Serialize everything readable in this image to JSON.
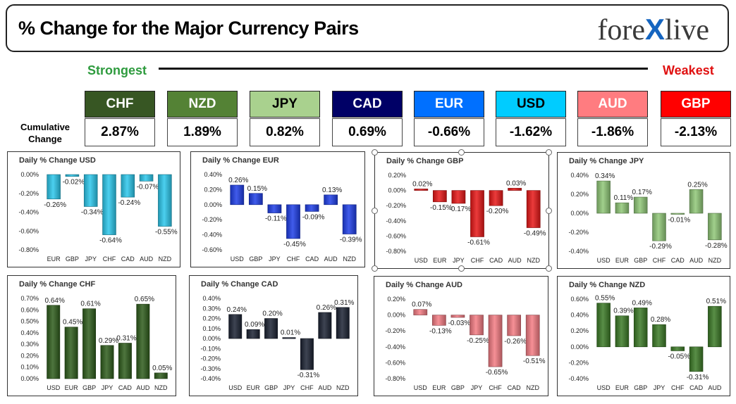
{
  "header": {
    "title": "% Change for the Major Currency Pairs",
    "logo_left": "fore",
    "logo_x": "X",
    "logo_right": "live"
  },
  "ranking": {
    "strongest_label": "Strongest",
    "weakest_label": "Weakest",
    "cumulative_label": "Cumulative Change"
  },
  "currencies": [
    {
      "name": "CHF",
      "value": "2.87%",
      "bg": "#375623",
      "fg": "#ffffff"
    },
    {
      "name": "NZD",
      "value": "1.89%",
      "bg": "#548235",
      "fg": "#ffffff"
    },
    {
      "name": "JPY",
      "value": "0.82%",
      "bg": "#a9d18e",
      "fg": "#000000"
    },
    {
      "name": "CAD",
      "value": "0.69%",
      "bg": "#000066",
      "fg": "#ffffff"
    },
    {
      "name": "EUR",
      "value": "-0.66%",
      "bg": "#0070ff",
      "fg": "#ffffff"
    },
    {
      "name": "USD",
      "value": "-1.62%",
      "bg": "#00ccff",
      "fg": "#000000"
    },
    {
      "name": "AUD",
      "value": "-1.86%",
      "bg": "#ff7c80",
      "fg": "#ffffff"
    },
    {
      "name": "GBP",
      "value": "-2.13%",
      "bg": "#ff0000",
      "fg": "#ffffff"
    }
  ],
  "chart_data": [
    {
      "type": "bar",
      "title": "Daily % Change USD",
      "categories": [
        "EUR",
        "GBP",
        "JPY",
        "CHF",
        "CAD",
        "AUD",
        "NZD"
      ],
      "values": [
        -0.26,
        -0.02,
        -0.34,
        -0.64,
        -0.24,
        -0.07,
        -0.55
      ],
      "labels": [
        "-0.26%",
        "-0.02%",
        "-0.34%",
        "-0.64%",
        "-0.24%",
        "-0.07%",
        "-0.55%"
      ],
      "ticks": [
        "0.00%",
        "-0.20%",
        "-0.40%",
        "-0.60%",
        "-0.80%"
      ],
      "ylim": [
        -0.8,
        0
      ],
      "color": "#2cc8ec"
    },
    {
      "type": "bar",
      "title": "Daily % Change EUR",
      "categories": [
        "USD",
        "GBP",
        "JPY",
        "CHF",
        "CAD",
        "AUD",
        "NZD"
      ],
      "values": [
        0.26,
        0.15,
        -0.11,
        -0.45,
        -0.09,
        0.13,
        -0.39
      ],
      "labels": [
        "0.26%",
        "0.15%",
        "-0.11%",
        "-0.45%",
        "-0.09%",
        "0.13%",
        "-0.39%"
      ],
      "ticks": [
        "0.40%",
        "0.20%",
        "0.00%",
        "-0.20%",
        "-0.40%",
        "-0.60%"
      ],
      "ylim": [
        -0.6,
        0.4
      ],
      "color": "#1f3fe8"
    },
    {
      "type": "bar",
      "title": "Daily % Change GBP",
      "categories": [
        "USD",
        "EUR",
        "JPY",
        "CHF",
        "CAD",
        "AUD",
        "NZD"
      ],
      "values": [
        0.02,
        -0.15,
        -0.17,
        -0.61,
        -0.2,
        0.03,
        -0.49
      ],
      "labels": [
        "0.02%",
        "-0.15%",
        "-0.17%",
        "-0.61%",
        "-0.20%",
        "0.03%",
        "-0.49%"
      ],
      "ticks": [
        "0.20%",
        "0.00%",
        "-0.20%",
        "-0.40%",
        "-0.60%",
        "-0.80%"
      ],
      "ylim": [
        -0.8,
        0.2
      ],
      "color": "#e81818"
    },
    {
      "type": "bar",
      "title": "Daily % Change JPY",
      "categories": [
        "USD",
        "EUR",
        "GBP",
        "CHF",
        "CAD",
        "AUD",
        "NZD"
      ],
      "values": [
        0.34,
        0.11,
        0.17,
        -0.29,
        -0.01,
        0.25,
        -0.28
      ],
      "labels": [
        "0.34%",
        "0.11%",
        "0.17%",
        "-0.29%",
        "-0.01%",
        "0.25%",
        "-0.28%"
      ],
      "ticks": [
        "0.40%",
        "0.20%",
        "0.00%",
        "-0.20%",
        "-0.40%"
      ],
      "ylim": [
        -0.4,
        0.4
      ],
      "color": "#90c878"
    },
    {
      "type": "bar",
      "title": "Daily % Change CHF",
      "categories": [
        "USD",
        "EUR",
        "GBP",
        "JPY",
        "CAD",
        "AUD",
        "NZD"
      ],
      "values": [
        0.64,
        0.45,
        0.61,
        0.29,
        0.31,
        0.65,
        0.05
      ],
      "labels": [
        "0.64%",
        "0.45%",
        "0.61%",
        "0.29%",
        "0.31%",
        "0.65%",
        "0.05%"
      ],
      "ticks": [
        "0.70%",
        "0.60%",
        "0.50%",
        "0.40%",
        "0.30%",
        "0.20%",
        "0.10%",
        "0.00%"
      ],
      "ylim": [
        0,
        0.7
      ],
      "color": "#2f5d1c"
    },
    {
      "type": "bar",
      "title": "Daily % Change CAD",
      "categories": [
        "USD",
        "EUR",
        "GBP",
        "JPY",
        "CHF",
        "AUD",
        "NZD"
      ],
      "values": [
        0.24,
        0.09,
        0.2,
        0.01,
        -0.31,
        0.26,
        0.31
      ],
      "labels": [
        "0.24%",
        "0.09%",
        "0.20%",
        "0.01%",
        "-0.31%",
        "0.26%",
        "0.31%"
      ],
      "ticks": [
        "0.40%",
        "0.30%",
        "0.20%",
        "0.10%",
        "0.00%",
        "-0.10%",
        "-0.20%",
        "-0.30%",
        "-0.40%"
      ],
      "ylim": [
        -0.4,
        0.4
      ],
      "color": "#1c2333"
    },
    {
      "type": "bar",
      "title": "Daily % Change AUD",
      "categories": [
        "USD",
        "EUR",
        "GBP",
        "JPY",
        "CHF",
        "CAD",
        "NZD"
      ],
      "values": [
        0.07,
        -0.13,
        -0.03,
        -0.25,
        -0.65,
        -0.26,
        -0.51
      ],
      "labels": [
        "0.07%",
        "-0.13%",
        "-0.03%",
        "-0.25%",
        "-0.65%",
        "-0.26%",
        "-0.51%"
      ],
      "ticks": [
        "0.20%",
        "0.00%",
        "-0.20%",
        "-0.40%",
        "-0.60%",
        "-0.80%"
      ],
      "ylim": [
        -0.8,
        0.2
      ],
      "color": "#f47c84"
    },
    {
      "type": "bar",
      "title": "Daily % Change NZD",
      "categories": [
        "USD",
        "EUR",
        "GBP",
        "JPY",
        "CHF",
        "CAD",
        "AUD"
      ],
      "values": [
        0.55,
        0.39,
        0.49,
        0.28,
        -0.05,
        -0.31,
        0.51
      ],
      "labels": [
        "0.55%",
        "0.39%",
        "0.49%",
        "0.28%",
        "-0.05%",
        "-0.31%",
        "0.51%"
      ],
      "ticks": [
        "0.60%",
        "0.40%",
        "0.20%",
        "0.00%",
        "-0.20%",
        "-0.40%"
      ],
      "ylim": [
        -0.4,
        0.6
      ],
      "color": "#3c7a26"
    }
  ]
}
